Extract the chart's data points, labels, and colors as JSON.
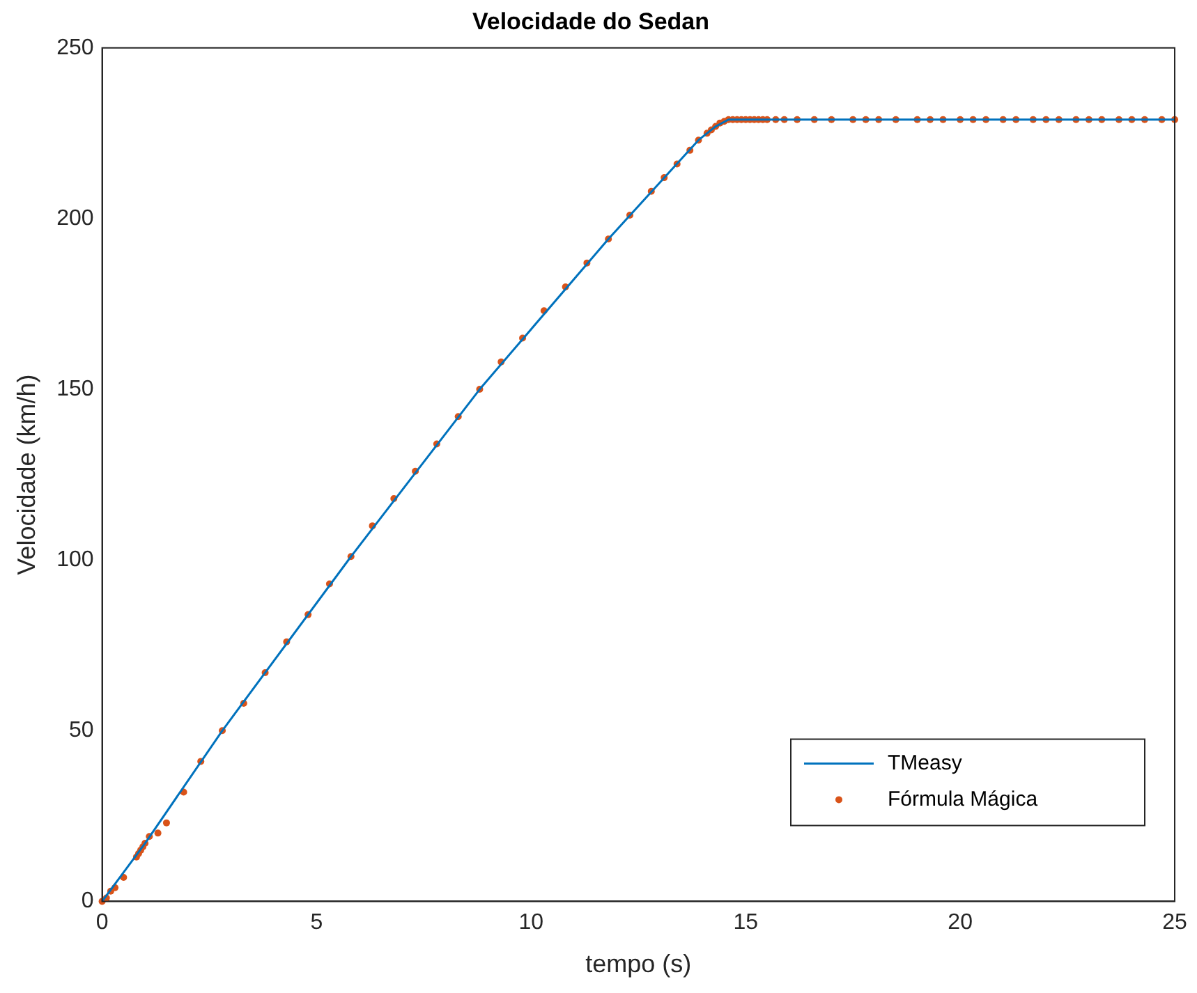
{
  "chart_data": {
    "type": "line",
    "title": "Velocidade do Sedan",
    "xlabel": "tempo (s)",
    "ylabel": "Velocidade (km/h)",
    "xlim": [
      0,
      25
    ],
    "xticks": [
      0,
      5,
      10,
      15,
      20,
      25
    ],
    "ylim": [
      0,
      250
    ],
    "yticks": [
      0,
      50,
      100,
      150,
      200,
      250
    ],
    "grid": false,
    "legend": "bottom right",
    "series": [
      {
        "name": "TMeasy",
        "color": "#0072bd",
        "marker": "none",
        "line_style": "solid",
        "x": [
          0,
          1.0,
          2.8,
          5.8,
          8.8,
          11.8,
          13.9,
          14.3,
          14.6,
          25
        ],
        "values": [
          0,
          17,
          50,
          101,
          150,
          194,
          223,
          227,
          229,
          229
        ]
      },
      {
        "name": "Fórmula Mágica",
        "color": "#d95319",
        "type": "scatter",
        "marker": "circle",
        "x": [
          0,
          0.1,
          0.2,
          0.3,
          0.5,
          0.8,
          0.85,
          0.9,
          0.95,
          1.0,
          1.1,
          1.3,
          1.5,
          1.9,
          2.3,
          2.8,
          3.3,
          3.8,
          4.3,
          4.8,
          5.3,
          5.8,
          6.3,
          6.8,
          7.3,
          7.8,
          8.3,
          8.8,
          9.3,
          9.8,
          10.3,
          10.8,
          11.3,
          11.8,
          12.3,
          12.8,
          13.1,
          13.4,
          13.7,
          13.9,
          14.1,
          14.2,
          14.3,
          14.4,
          14.5,
          14.6,
          14.7,
          14.8,
          14.9,
          15.0,
          15.1,
          15.2,
          15.3,
          15.4,
          15.5,
          15.7,
          15.9,
          16.2,
          16.6,
          17.0,
          17.5,
          17.8,
          18.1,
          18.5,
          19.0,
          19.3,
          19.6,
          20.0,
          20.3,
          20.6,
          21.0,
          21.3,
          21.7,
          22.0,
          22.3,
          22.7,
          23.0,
          23.3,
          23.7,
          24.0,
          24.3,
          24.7,
          25.0
        ],
        "values": [
          0,
          1,
          3,
          4,
          7,
          13,
          14,
          15,
          16,
          17,
          19,
          20,
          23,
          32,
          41,
          50,
          58,
          67,
          76,
          84,
          93,
          101,
          110,
          118,
          126,
          134,
          142,
          150,
          158,
          165,
          173,
          180,
          187,
          194,
          201,
          208,
          212,
          216,
          220,
          223,
          225,
          226,
          227,
          228,
          228.5,
          229,
          229,
          229,
          229,
          229,
          229,
          229,
          229,
          229,
          229,
          229,
          229,
          229,
          229,
          229,
          229,
          229,
          229,
          229,
          229,
          229,
          229,
          229,
          229,
          229,
          229,
          229,
          229,
          229,
          229,
          229,
          229,
          229,
          229,
          229,
          229,
          229,
          229
        ]
      }
    ]
  }
}
